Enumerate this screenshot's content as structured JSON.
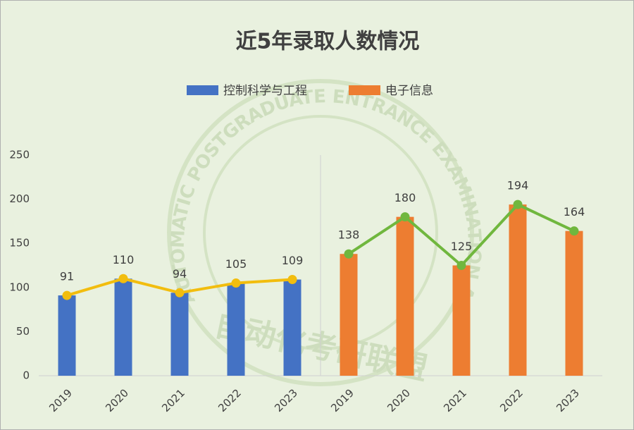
{
  "chart_data": {
    "type": "bar",
    "title": "近5年录取人数情况",
    "watermark": "自动化考研联盟",
    "watermark_ring": "AUTOMATIC POSTGRADUATE ENTRANCE EXAMINATION ALLIANCE",
    "categories": [
      "2019",
      "2020",
      "2021",
      "2022",
      "2023",
      "2019",
      "2020",
      "2021",
      "2022",
      "2023"
    ],
    "series": [
      {
        "name": "控制科学与工程",
        "color": "#4472c4",
        "line_color": "#f2bd0e",
        "values": [
          91,
          110,
          94,
          105,
          109,
          null,
          null,
          null,
          null,
          null
        ]
      },
      {
        "name": "电子信息",
        "color": "#ed7d31",
        "line_color": "#70b73e",
        "values": [
          null,
          null,
          null,
          null,
          null,
          138,
          180,
          125,
          194,
          164
        ]
      }
    ],
    "ylim": [
      0,
      250
    ],
    "yticks": [
      0,
      50,
      100,
      150,
      200,
      250
    ],
    "grid": false,
    "legend": "top"
  }
}
